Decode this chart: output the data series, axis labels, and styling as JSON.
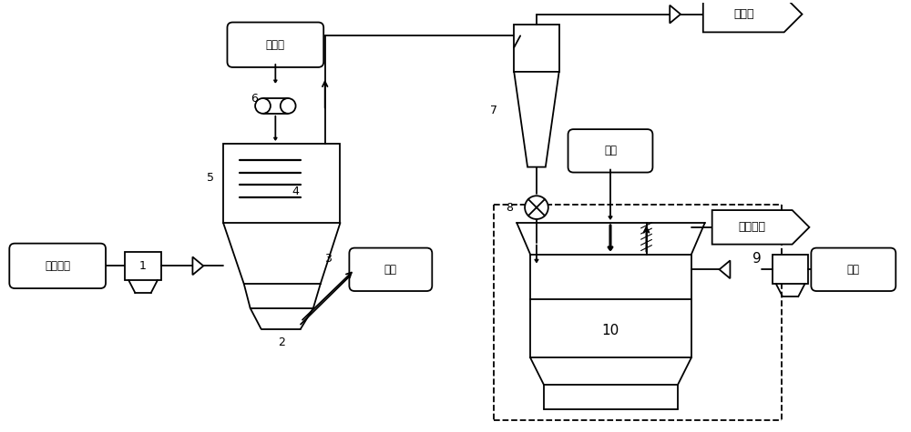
{
  "bg_color": "#ffffff",
  "lc": "#000000",
  "labels": {
    "gawen": "高温炉烟",
    "shisan": "湿散料",
    "zazhi": "杂物",
    "yuanmei": "原煤",
    "qulutang": "去炉膛",
    "qurshaoqi": "去燃烧器",
    "daqi": "大气",
    "n1": "1",
    "n2": "2",
    "n3": "3",
    "n4": "4",
    "n5": "5",
    "n6": "6",
    "n7": "7",
    "n8": "8",
    "n9": "9",
    "n10": "10"
  },
  "figsize": [
    10.0,
    4.75
  ],
  "dpi": 100
}
